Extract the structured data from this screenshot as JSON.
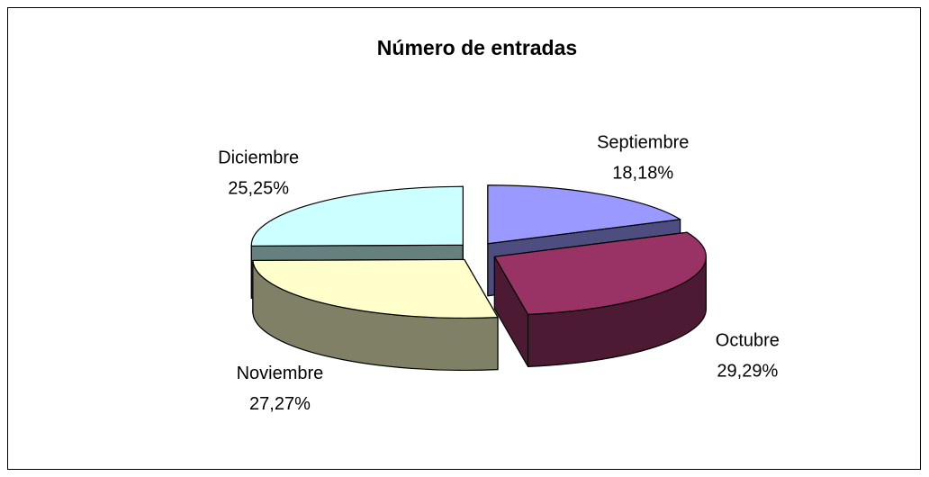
{
  "chart_data": {
    "type": "pie",
    "title": "Número de entradas",
    "categories": [
      "Septiembre",
      "Octubre",
      "Noviembre",
      "Diciembre"
    ],
    "values": [
      18.18,
      29.29,
      27.27,
      25.25
    ],
    "value_labels": [
      "18,18%",
      "29,29%",
      "27,27%",
      "25,25%"
    ],
    "colors": [
      "#9999ff",
      "#993366",
      "#ffffcc",
      "#ccffff"
    ]
  }
}
